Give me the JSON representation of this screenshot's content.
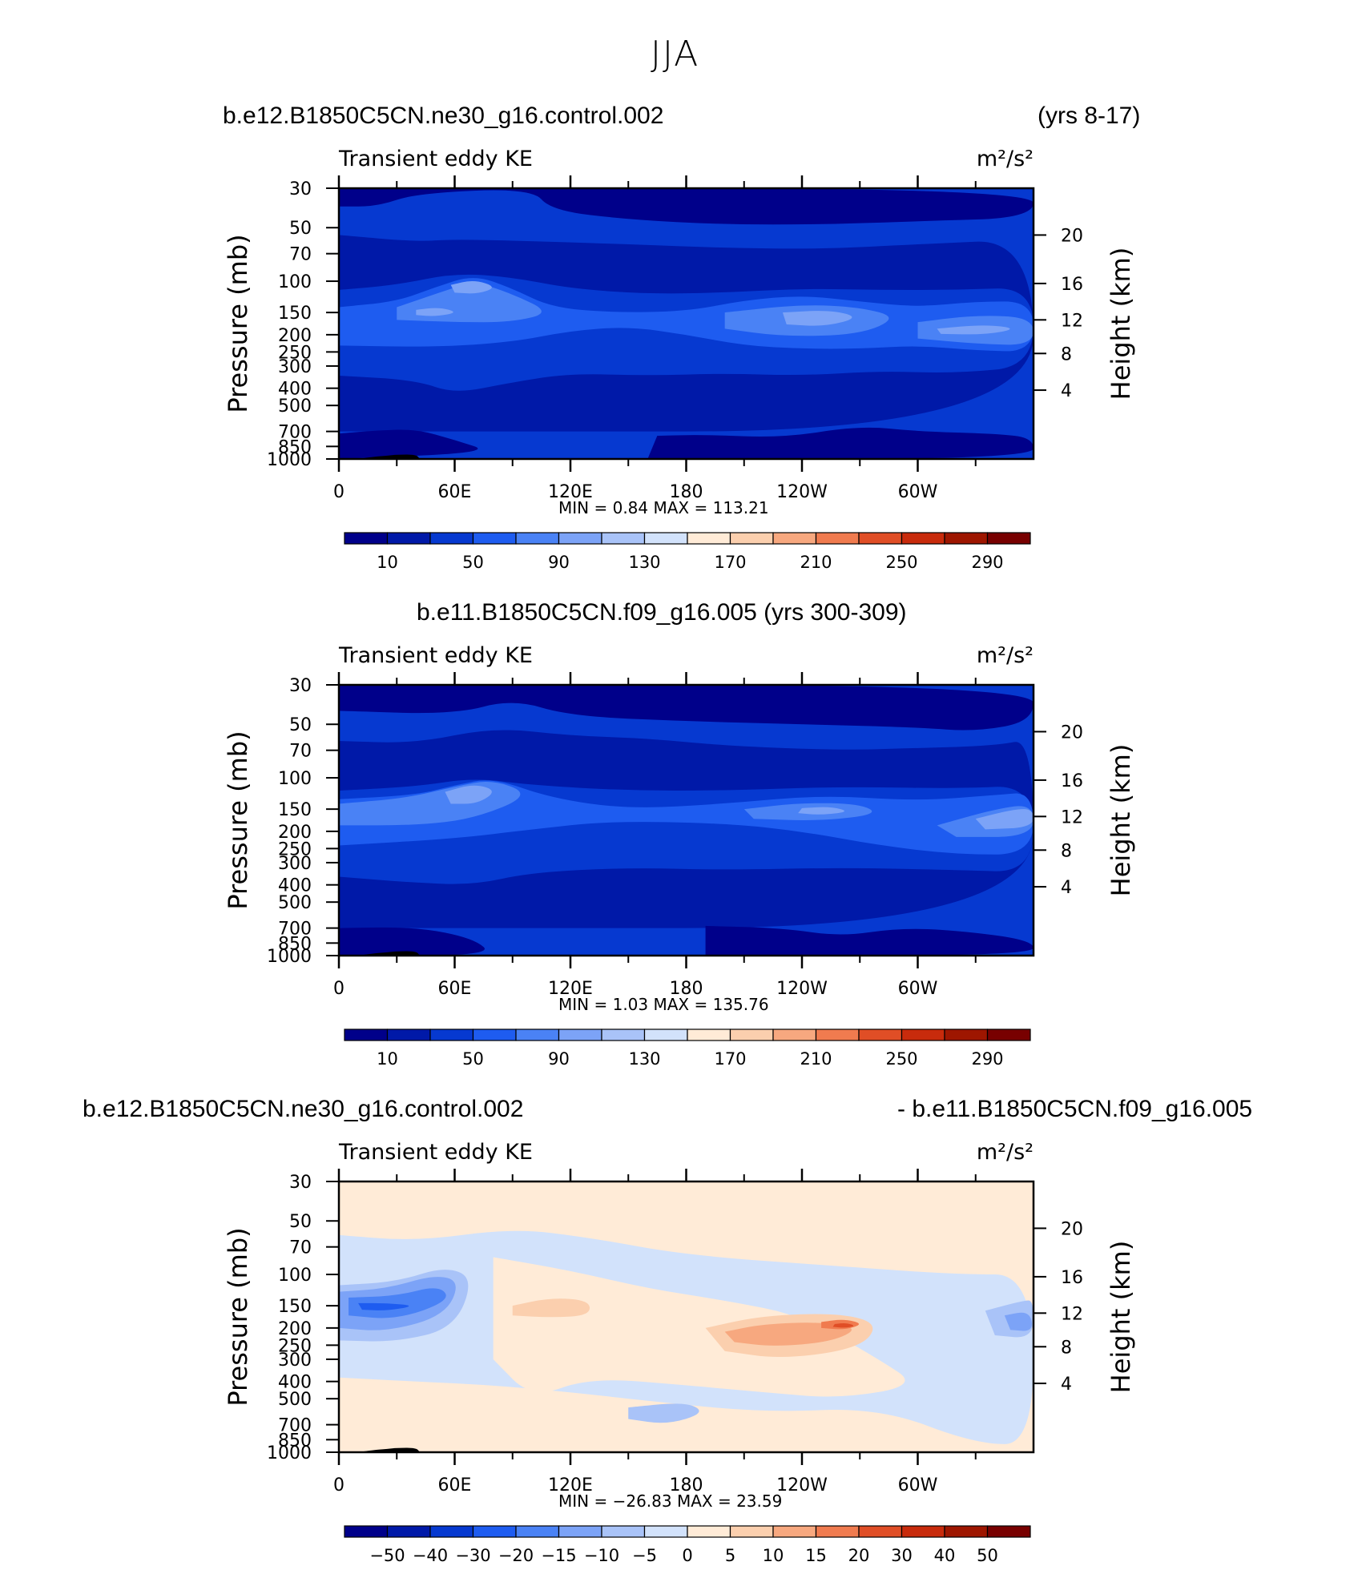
{
  "page_title": "JJA",
  "panel1": {
    "case": "b.e12.B1850C5CN.ne30_g16.control.002",
    "years": "(yrs 8-17)"
  },
  "panel2": {
    "case_years": "b.e11.B1850C5CN.f09_g16.005 (yrs 300-309)"
  },
  "panel3": {
    "case_a": "b.e12.B1850C5CN.ne30_g16.control.002",
    "case_b": "- b.e11.B1850C5CN.f09_g16.005"
  },
  "chart_data": [
    {
      "type": "heatmap",
      "panel": "top",
      "title": "Transient eddy KE",
      "units": "m²/s²",
      "ylabel_left": "Pressure  (mb)",
      "ylabel_right": "Height  (km)",
      "x_ticks": [
        "0",
        "60E",
        "120E",
        "180",
        "120W",
        "60W"
      ],
      "y_ticks_pressure": [
        "30",
        "50",
        "70",
        "100",
        "150",
        "200",
        "250",
        "300",
        "400",
        "500",
        "700",
        "850",
        "1000"
      ],
      "y_ticks_height": [
        "20",
        "16",
        "12",
        "8",
        "4"
      ],
      "min_label": "MIN =    0.84   MAX =  113.21",
      "min": 0.84,
      "max": 113.21,
      "colorbar_levels": [
        "10",
        "50",
        "90",
        "130",
        "170",
        "210",
        "250",
        "290"
      ],
      "colorbar_colors": [
        "#00008a",
        "#0019a8",
        "#0639d0",
        "#1e5cf0",
        "#4a82f5",
        "#7ca3f7",
        "#a9c3f8",
        "#d2e2fb",
        "#ffebd7",
        "#fbcfae",
        "#f7a87f",
        "#f07b4f",
        "#e04e26",
        "#c82b0c",
        "#9e1600",
        "#780000"
      ]
    },
    {
      "type": "heatmap",
      "panel": "middle",
      "title": "Transient eddy KE",
      "units": "m²/s²",
      "ylabel_left": "Pressure  (mb)",
      "ylabel_right": "Height  (km)",
      "x_ticks": [
        "0",
        "60E",
        "120E",
        "180",
        "120W",
        "60W"
      ],
      "y_ticks_pressure": [
        "30",
        "50",
        "70",
        "100",
        "150",
        "200",
        "250",
        "300",
        "400",
        "500",
        "700",
        "850",
        "1000"
      ],
      "y_ticks_height": [
        "20",
        "16",
        "12",
        "8",
        "4"
      ],
      "min_label": "MIN =    1.03   MAX =  135.76",
      "min": 1.03,
      "max": 135.76,
      "colorbar_levels": [
        "10",
        "50",
        "90",
        "130",
        "170",
        "210",
        "250",
        "290"
      ],
      "colorbar_colors": [
        "#00008a",
        "#0019a8",
        "#0639d0",
        "#1e5cf0",
        "#4a82f5",
        "#7ca3f7",
        "#a9c3f8",
        "#d2e2fb",
        "#ffebd7",
        "#fbcfae",
        "#f7a87f",
        "#f07b4f",
        "#e04e26",
        "#c82b0c",
        "#9e1600",
        "#780000"
      ]
    },
    {
      "type": "heatmap",
      "panel": "bottom",
      "title": "Transient eddy KE",
      "units": "m²/s²",
      "ylabel_left": "Pressure  (mb)",
      "ylabel_right": "Height  (km)",
      "x_ticks": [
        "0",
        "60E",
        "120E",
        "180",
        "120W",
        "60W"
      ],
      "y_ticks_pressure": [
        "30",
        "50",
        "70",
        "100",
        "150",
        "200",
        "250",
        "300",
        "400",
        "500",
        "700",
        "850",
        "1000"
      ],
      "y_ticks_height": [
        "20",
        "16",
        "12",
        "8",
        "4"
      ],
      "min_label": "MIN = −26.83   MAX =   23.59",
      "min": -26.83,
      "max": 23.59,
      "colorbar_levels": [
        "−50",
        "−40",
        "−30",
        "−20",
        "−15",
        "−10",
        "−5",
        "0",
        "5",
        "10",
        "15",
        "20",
        "30",
        "40",
        "50"
      ],
      "colorbar_colors": [
        "#00008a",
        "#0019a8",
        "#0639d0",
        "#1e5cf0",
        "#4a82f5",
        "#7ca3f7",
        "#a9c3f8",
        "#d2e2fb",
        "#ffebd7",
        "#fbcfae",
        "#f7a87f",
        "#f07b4f",
        "#e04e26",
        "#c82b0c",
        "#9e1600",
        "#780000"
      ]
    }
  ]
}
